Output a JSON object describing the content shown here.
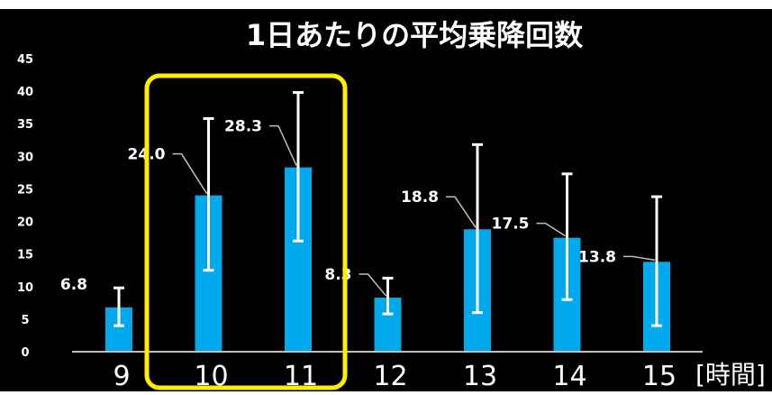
{
  "chart_data": {
    "type": "bar",
    "title": "1日あたりの平均乗降回数",
    "xlabel": "[時間]",
    "ylabel": "",
    "categories": [
      "9",
      "10",
      "11",
      "12",
      "13",
      "14",
      "15"
    ],
    "values": [
      6.8,
      24.0,
      28.3,
      8.3,
      18.8,
      17.5,
      13.8
    ],
    "value_labels": [
      "6.8",
      "24.0",
      "28.3",
      "8.3",
      "18.8",
      "17.5",
      "13.8"
    ],
    "error_low": [
      4.0,
      12.5,
      17.0,
      5.8,
      6.0,
      8.0,
      4.0
    ],
    "error_high": [
      9.8,
      35.8,
      39.8,
      11.3,
      31.8,
      27.3,
      23.8
    ],
    "ylim": [
      0,
      45
    ],
    "yticks": [
      "0",
      "5",
      "10",
      "15",
      "20",
      "25",
      "30",
      "35",
      "40",
      "45"
    ],
    "grid": false,
    "legend": "none",
    "highlight_categories": [
      "10",
      "11"
    ],
    "colors": {
      "background": "#000000",
      "bar": "#00a8ec",
      "error_bar": "#ffffff",
      "text": "#ffffff",
      "highlight_box": "#ffee00"
    }
  }
}
